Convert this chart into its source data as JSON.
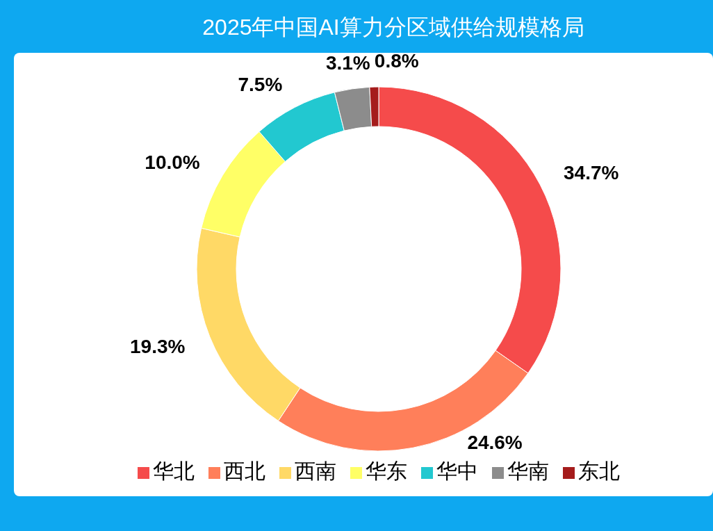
{
  "chart_data": {
    "type": "donut",
    "title": "2025年中国AI算力分区域供给规模格局",
    "categories": [
      "华北",
      "西北",
      "西南",
      "华东",
      "华中",
      "华南",
      "东北"
    ],
    "values": [
      34.7,
      24.6,
      19.3,
      10.0,
      7.5,
      3.1,
      0.8
    ],
    "value_labels": [
      "34.7%",
      "24.6%",
      "19.3%",
      "10.0%",
      "7.5%",
      "3.1%",
      "0.8%"
    ],
    "colors": [
      "#f54b4b",
      "#ff7f5a",
      "#ffd966",
      "#ffff66",
      "#22c8d0",
      "#8c8c8c",
      "#a51c1c"
    ],
    "legend": "bottom"
  }
}
